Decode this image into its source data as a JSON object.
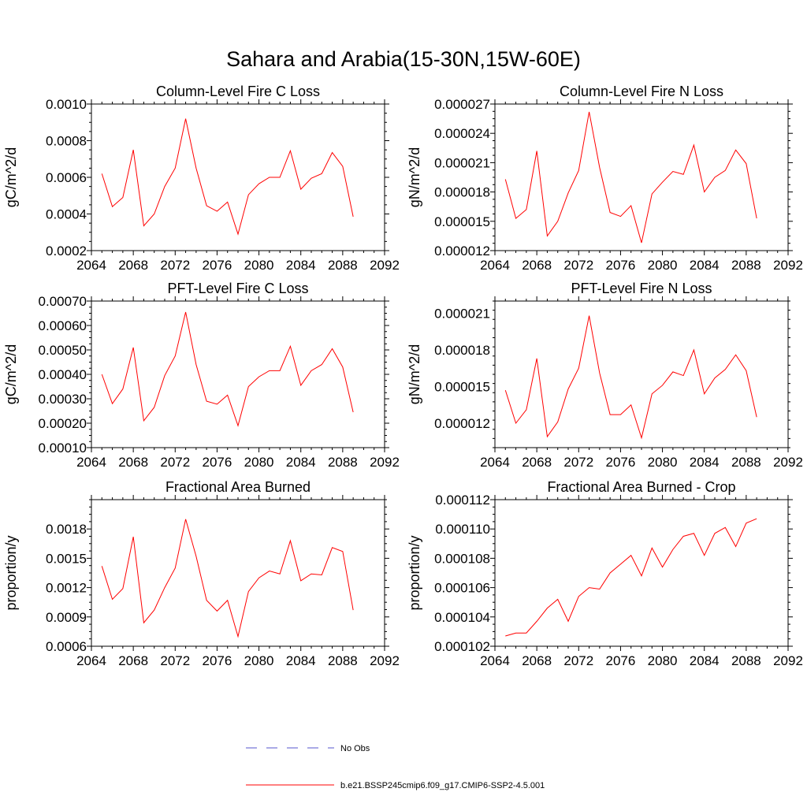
{
  "title": "Sahara and Arabia(15-30N,15W-60E)",
  "legend": [
    {
      "label": "No Obs",
      "color": "#5555cc",
      "dash": true
    },
    {
      "label": "b.e21.BSSP245cmip6.f09_g17.CMIP6-SSP2-4.5.001",
      "color": "#ff0000",
      "dash": false
    }
  ],
  "chart_data": [
    {
      "type": "line",
      "title": "Column-Level Fire C Loss",
      "ylabel": "gC/m^2/d",
      "xlim": [
        2064,
        2092
      ],
      "ylim": [
        0.0002,
        0.001
      ],
      "xticks": [
        2064,
        2068,
        2072,
        2076,
        2080,
        2084,
        2088,
        2092
      ],
      "yticks": [
        0.0002,
        0.0004,
        0.0006,
        0.0008,
        0.001
      ],
      "yticklabels": [
        "0.0002",
        "0.0004",
        "0.0006",
        "0.0008",
        "0.0010"
      ],
      "x": [
        2065,
        2066,
        2067,
        2068,
        2069,
        2070,
        2071,
        2072,
        2073,
        2074,
        2075,
        2076,
        2077,
        2078,
        2079,
        2080,
        2081,
        2082,
        2083,
        2084,
        2085,
        2086,
        2087,
        2088,
        2089
      ],
      "series": [
        {
          "color": "#ff0000",
          "values": [
            0.00062,
            0.00044,
            0.00049,
            0.00075,
            0.000335,
            0.0004,
            0.00055,
            0.00065,
            0.00092,
            0.00065,
            0.000445,
            0.000415,
            0.000465,
            0.00029,
            0.000505,
            0.000565,
            0.0006,
            0.0006,
            0.000745,
            0.000535,
            0.000595,
            0.00062,
            0.000735,
            0.00066,
            0.000385
          ]
        }
      ]
    },
    {
      "type": "line",
      "title": "Column-Level Fire N Loss",
      "ylabel": "gN/m^2/d",
      "xlim": [
        2064,
        2092
      ],
      "ylim": [
        1.2e-05,
        2.7e-05
      ],
      "xticks": [
        2064,
        2068,
        2072,
        2076,
        2080,
        2084,
        2088,
        2092
      ],
      "yticks": [
        1.2e-05,
        1.5e-05,
        1.8e-05,
        2.1e-05,
        2.4e-05,
        2.7e-05
      ],
      "yticklabels": [
        "0.000012",
        "0.000015",
        "0.000018",
        "0.000021",
        "0.000024",
        "0.000027"
      ],
      "x": [
        2065,
        2066,
        2067,
        2068,
        2069,
        2070,
        2071,
        2072,
        2073,
        2074,
        2075,
        2076,
        2077,
        2078,
        2079,
        2080,
        2081,
        2082,
        2083,
        2084,
        2085,
        2086,
        2087,
        2088,
        2089
      ],
      "series": [
        {
          "color": "#ff0000",
          "values": [
            1.93e-05,
            1.53e-05,
            1.62e-05,
            2.22e-05,
            1.35e-05,
            1.5e-05,
            1.79e-05,
            2.02e-05,
            2.62e-05,
            2.05e-05,
            1.59e-05,
            1.55e-05,
            1.66e-05,
            1.28e-05,
            1.78e-05,
            1.9e-05,
            2.01e-05,
            1.98e-05,
            2.28e-05,
            1.8e-05,
            1.95e-05,
            2.02e-05,
            2.23e-05,
            2.09e-05,
            1.53e-05
          ]
        }
      ]
    },
    {
      "type": "line",
      "title": "PFT-Level Fire C Loss",
      "ylabel": "gC/m^2/d",
      "xlim": [
        2064,
        2092
      ],
      "ylim": [
        0.0001,
        0.0007
      ],
      "xticks": [
        2064,
        2068,
        2072,
        2076,
        2080,
        2084,
        2088,
        2092
      ],
      "yticks": [
        0.0001,
        0.0002,
        0.0003,
        0.0004,
        0.0005,
        0.0006,
        0.0007
      ],
      "yticklabels": [
        "0.00010",
        "0.00020",
        "0.00030",
        "0.00040",
        "0.00050",
        "0.00060",
        "0.00070"
      ],
      "x": [
        2065,
        2066,
        2067,
        2068,
        2069,
        2070,
        2071,
        2072,
        2073,
        2074,
        2075,
        2076,
        2077,
        2078,
        2079,
        2080,
        2081,
        2082,
        2083,
        2084,
        2085,
        2086,
        2087,
        2088,
        2089
      ],
      "series": [
        {
          "color": "#ff0000",
          "values": [
            0.0004,
            0.00028,
            0.00034,
            0.00051,
            0.00021,
            0.000265,
            0.000395,
            0.000475,
            0.000655,
            0.00044,
            0.00029,
            0.000278,
            0.000315,
            0.00019,
            0.00035,
            0.00039,
            0.000415,
            0.000415,
            0.000515,
            0.000355,
            0.000415,
            0.00044,
            0.000505,
            0.00043,
            0.000245
          ]
        }
      ]
    },
    {
      "type": "line",
      "title": "PFT-Level Fire N Loss",
      "ylabel": "gN/m^2/d",
      "xlim": [
        2064,
        2092
      ],
      "ylim": [
        1e-05,
        2.2e-05
      ],
      "xticks": [
        2064,
        2068,
        2072,
        2076,
        2080,
        2084,
        2088,
        2092
      ],
      "yticks": [
        1.2e-05,
        1.5e-05,
        1.8e-05,
        2.1e-05
      ],
      "yticklabels": [
        "0.000012",
        "0.000015",
        "0.000018",
        "0.000021"
      ],
      "x": [
        2065,
        2066,
        2067,
        2068,
        2069,
        2070,
        2071,
        2072,
        2073,
        2074,
        2075,
        2076,
        2077,
        2078,
        2079,
        2080,
        2081,
        2082,
        2083,
        2084,
        2085,
        2086,
        2087,
        2088,
        2089
      ],
      "series": [
        {
          "color": "#ff0000",
          "values": [
            1.47e-05,
            1.2e-05,
            1.31e-05,
            1.73e-05,
            1.09e-05,
            1.21e-05,
            1.48e-05,
            1.65e-05,
            2.08e-05,
            1.61e-05,
            1.27e-05,
            1.27e-05,
            1.35e-05,
            1.08e-05,
            1.44e-05,
            1.51e-05,
            1.62e-05,
            1.59e-05,
            1.8e-05,
            1.44e-05,
            1.57e-05,
            1.64e-05,
            1.76e-05,
            1.63e-05,
            1.25e-05
          ]
        }
      ]
    },
    {
      "type": "line",
      "title": "Fractional Area Burned",
      "ylabel": "proportion/y",
      "xlim": [
        2064,
        2092
      ],
      "ylim": [
        0.0006,
        0.0021
      ],
      "xticks": [
        2064,
        2068,
        2072,
        2076,
        2080,
        2084,
        2088,
        2092
      ],
      "yticks": [
        0.0006,
        0.0009,
        0.0012,
        0.0015,
        0.0018
      ],
      "yticklabels": [
        "0.0006",
        "0.0009",
        "0.0012",
        "0.0015",
        "0.0018"
      ],
      "x": [
        2065,
        2066,
        2067,
        2068,
        2069,
        2070,
        2071,
        2072,
        2073,
        2074,
        2075,
        2076,
        2077,
        2078,
        2079,
        2080,
        2081,
        2082,
        2083,
        2084,
        2085,
        2086,
        2087,
        2088,
        2089
      ],
      "series": [
        {
          "color": "#ff0000",
          "values": [
            0.00142,
            0.00108,
            0.00119,
            0.00172,
            0.00084,
            0.00097,
            0.0012,
            0.0014,
            0.0019,
            0.00152,
            0.00107,
            0.00096,
            0.00107,
            0.0007,
            0.00116,
            0.0013,
            0.00137,
            0.00134,
            0.00168,
            0.00127,
            0.00134,
            0.00133,
            0.00161,
            0.00157,
            0.00097
          ]
        }
      ]
    },
    {
      "type": "line",
      "title": "Fractional Area Burned - Crop",
      "ylabel": "proportion/y",
      "xlim": [
        2064,
        2092
      ],
      "ylim": [
        0.000102,
        0.000112
      ],
      "xticks": [
        2064,
        2068,
        2072,
        2076,
        2080,
        2084,
        2088,
        2092
      ],
      "yticks": [
        0.000102,
        0.000104,
        0.000106,
        0.000108,
        0.00011,
        0.000112
      ],
      "yticklabels": [
        "0.000102",
        "0.000104",
        "0.000106",
        "0.000108",
        "0.000110",
        "0.000112"
      ],
      "x": [
        2065,
        2066,
        2067,
        2068,
        2069,
        2070,
        2071,
        2072,
        2073,
        2074,
        2075,
        2076,
        2077,
        2078,
        2079,
        2080,
        2081,
        2082,
        2083,
        2084,
        2085,
        2086,
        2087,
        2088,
        2089
      ],
      "series": [
        {
          "color": "#ff0000",
          "values": [
            0.0001027,
            0.0001029,
            0.0001029,
            0.0001037,
            0.0001046,
            0.0001052,
            0.0001037,
            0.0001054,
            0.000106,
            0.0001059,
            0.000107,
            0.0001076,
            0.0001082,
            0.0001068,
            0.0001087,
            0.0001074,
            0.0001086,
            0.0001095,
            0.0001097,
            0.0001082,
            0.0001097,
            0.0001101,
            0.0001088,
            0.0001104,
            0.0001107
          ]
        }
      ]
    }
  ]
}
